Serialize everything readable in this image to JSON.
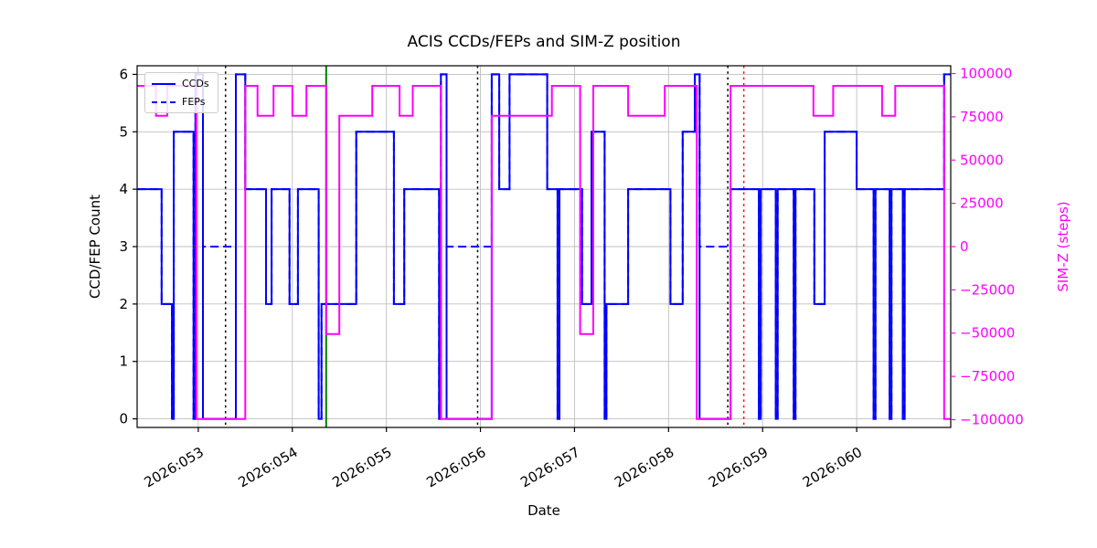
{
  "title": "ACIS CCDs/FEPs and SIM-Z position",
  "xlabel": "Date",
  "ylabel_left": "CCD/FEP Count",
  "ylabel_right": "SIM-Z (steps)",
  "legend": {
    "ccds": "CCDs",
    "feps": "FEPs"
  },
  "colors": {
    "ccd_line": "#0000ff",
    "fep_line": "#0000ff",
    "simz_line": "#ff00ff",
    "grid": "#bfbfbf",
    "spine": "#000000",
    "right_axis_text": "#ff00ff",
    "vline_black": "#000000",
    "vline_green": "#008000",
    "vline_red": "#ff0000"
  },
  "chart_data": {
    "type": "line",
    "title": "ACIS CCDs/FEPs and SIM-Z position",
    "xlabel": "Date",
    "ylabel": "CCD/FEP Count",
    "ylabel_right": "SIM-Z (steps)",
    "grid": true,
    "legend_position": "upper left",
    "x_domain": [
      52.35,
      61.0
    ],
    "x_ticks": [
      {
        "v": 53,
        "label": "2026:053"
      },
      {
        "v": 54,
        "label": "2026:054"
      },
      {
        "v": 55,
        "label": "2026:055"
      },
      {
        "v": 56,
        "label": "2026:056"
      },
      {
        "v": 57,
        "label": "2026:057"
      },
      {
        "v": 58,
        "label": "2026:058"
      },
      {
        "v": 59,
        "label": "2026:059"
      },
      {
        "v": 60,
        "label": "2026:060"
      }
    ],
    "y_left": {
      "domain": [
        -0.15,
        6.15
      ],
      "ticks": [
        {
          "v": 0,
          "label": "0"
        },
        {
          "v": 1,
          "label": "1"
        },
        {
          "v": 2,
          "label": "2"
        },
        {
          "v": 3,
          "label": "3"
        },
        {
          "v": 4,
          "label": "4"
        },
        {
          "v": 5,
          "label": "5"
        },
        {
          "v": 6,
          "label": "6"
        }
      ]
    },
    "y_right": {
      "domain": [
        -104500,
        104500
      ],
      "ticks": [
        {
          "v": 100000,
          "label": "100000"
        },
        {
          "v": 75000,
          "label": "75000"
        },
        {
          "v": 50000,
          "label": "50000"
        },
        {
          "v": 25000,
          "label": "25000"
        },
        {
          "v": 0,
          "label": "0"
        },
        {
          "v": -25000,
          "label": "−25000"
        },
        {
          "v": -50000,
          "label": "−50000"
        },
        {
          "v": -75000,
          "label": "−75000"
        },
        {
          "v": -100000,
          "label": "−100000"
        }
      ]
    },
    "series": [
      {
        "name": "CCDs",
        "axis": "left",
        "color": "#0000ff",
        "style": "solid",
        "width": 2,
        "steps": [
          [
            52.35,
            4
          ],
          [
            52.61,
            2
          ],
          [
            52.72,
            0
          ],
          [
            52.74,
            5
          ],
          [
            52.95,
            0
          ],
          [
            52.97,
            6
          ],
          [
            53.05,
            0
          ],
          [
            53.4,
            6
          ],
          [
            53.5,
            4
          ],
          [
            53.72,
            2
          ],
          [
            53.78,
            4
          ],
          [
            53.97,
            2
          ],
          [
            54.06,
            4
          ],
          [
            54.28,
            0
          ],
          [
            54.31,
            2
          ],
          [
            54.68,
            5
          ],
          [
            55.08,
            2
          ],
          [
            55.19,
            4
          ],
          [
            55.56,
            0
          ],
          [
            55.58,
            6
          ],
          [
            55.64,
            0
          ],
          [
            56.12,
            6
          ],
          [
            56.2,
            4
          ],
          [
            56.31,
            6
          ],
          [
            56.71,
            4
          ],
          [
            56.82,
            0
          ],
          [
            56.84,
            4
          ],
          [
            57.08,
            2
          ],
          [
            57.18,
            5
          ],
          [
            57.32,
            0
          ],
          [
            57.34,
            2
          ],
          [
            57.57,
            4
          ],
          [
            58.02,
            2
          ],
          [
            58.15,
            5
          ],
          [
            58.28,
            6
          ],
          [
            58.33,
            0
          ],
          [
            58.66,
            4
          ],
          [
            58.96,
            0
          ],
          [
            58.98,
            4
          ],
          [
            59.14,
            0
          ],
          [
            59.16,
            4
          ],
          [
            59.33,
            0
          ],
          [
            59.35,
            4
          ],
          [
            59.55,
            2
          ],
          [
            59.66,
            5
          ],
          [
            60.0,
            4
          ],
          [
            60.18,
            0
          ],
          [
            60.2,
            4
          ],
          [
            60.35,
            0
          ],
          [
            60.37,
            4
          ],
          [
            60.49,
            0
          ],
          [
            60.51,
            4
          ],
          [
            60.93,
            6
          ]
        ]
      },
      {
        "name": "FEPs",
        "axis": "left",
        "color": "#0000ff",
        "style": "dashed",
        "width": 2,
        "steps": [
          [
            52.35,
            4
          ],
          [
            52.61,
            2
          ],
          [
            52.72,
            0
          ],
          [
            52.74,
            5
          ],
          [
            52.95,
            0
          ],
          [
            52.97,
            6
          ],
          [
            53.05,
            3
          ],
          [
            53.4,
            6
          ],
          [
            53.5,
            4
          ],
          [
            53.72,
            2
          ],
          [
            53.78,
            4
          ],
          [
            53.97,
            2
          ],
          [
            54.06,
            4
          ],
          [
            54.28,
            0
          ],
          [
            54.31,
            2
          ],
          [
            54.68,
            5
          ],
          [
            55.08,
            2
          ],
          [
            55.19,
            4
          ],
          [
            55.56,
            0
          ],
          [
            55.58,
            6
          ],
          [
            55.64,
            3
          ],
          [
            56.12,
            6
          ],
          [
            56.2,
            4
          ],
          [
            56.31,
            6
          ],
          [
            56.71,
            4
          ],
          [
            56.82,
            0
          ],
          [
            56.84,
            4
          ],
          [
            57.08,
            2
          ],
          [
            57.18,
            5
          ],
          [
            57.32,
            0
          ],
          [
            57.34,
            2
          ],
          [
            57.57,
            4
          ],
          [
            58.02,
            2
          ],
          [
            58.15,
            5
          ],
          [
            58.28,
            6
          ],
          [
            58.33,
            3
          ],
          [
            58.66,
            4
          ],
          [
            58.96,
            0
          ],
          [
            58.98,
            4
          ],
          [
            59.14,
            0
          ],
          [
            59.16,
            4
          ],
          [
            59.33,
            0
          ],
          [
            59.35,
            4
          ],
          [
            59.55,
            2
          ],
          [
            59.66,
            5
          ],
          [
            60.0,
            4
          ],
          [
            60.18,
            0
          ],
          [
            60.2,
            4
          ],
          [
            60.35,
            0
          ],
          [
            60.37,
            4
          ],
          [
            60.49,
            0
          ],
          [
            60.51,
            4
          ],
          [
            60.93,
            6
          ]
        ]
      },
      {
        "name": "SIM-Z",
        "axis": "right",
        "color": "#ff00ff",
        "style": "solid",
        "width": 2,
        "steps": [
          [
            52.35,
            92904
          ],
          [
            52.55,
            75624
          ],
          [
            52.67,
            92904
          ],
          [
            52.98,
            -99612
          ],
          [
            53.5,
            92904
          ],
          [
            53.63,
            75624
          ],
          [
            53.8,
            92904
          ],
          [
            54.0,
            75624
          ],
          [
            54.15,
            92904
          ],
          [
            54.36,
            -50505
          ],
          [
            54.5,
            75624
          ],
          [
            54.85,
            92904
          ],
          [
            55.14,
            75624
          ],
          [
            55.28,
            92904
          ],
          [
            55.58,
            -99612
          ],
          [
            56.12,
            75624
          ],
          [
            56.76,
            92904
          ],
          [
            57.06,
            -50505
          ],
          [
            57.2,
            92904
          ],
          [
            57.57,
            75624
          ],
          [
            57.96,
            92904
          ],
          [
            58.3,
            -99612
          ],
          [
            58.66,
            92904
          ],
          [
            59.54,
            75624
          ],
          [
            59.75,
            92904
          ],
          [
            60.27,
            75624
          ],
          [
            60.41,
            92904
          ],
          [
            60.93,
            -99612
          ]
        ]
      }
    ],
    "vlines": [
      {
        "x": 53.29,
        "color": "#000000",
        "style": "dotted",
        "width": 1.5
      },
      {
        "x": 54.36,
        "color": "#008000",
        "style": "solid",
        "width": 2
      },
      {
        "x": 55.97,
        "color": "#000000",
        "style": "dotted",
        "width": 1.5
      },
      {
        "x": 58.63,
        "color": "#000000",
        "style": "dotted",
        "width": 1.5
      },
      {
        "x": 58.8,
        "color": "#ff0000",
        "style": "dotted",
        "width": 1.5
      }
    ]
  }
}
